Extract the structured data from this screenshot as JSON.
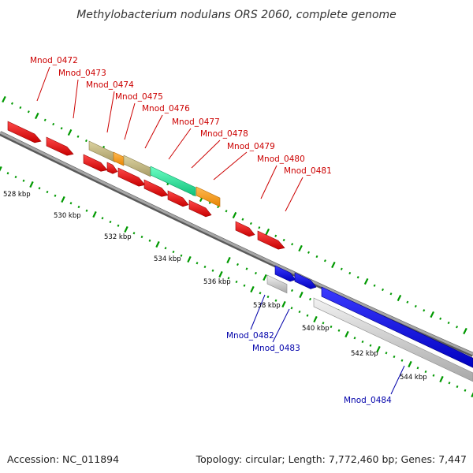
{
  "title": "Methylobacterium nodulans ORS 2060, complete genome",
  "accession": "Accession: NC_011894",
  "topology": "Topology: circular; Length: 7,772,460 bp; Genes: 7,447",
  "colors": {
    "red": "#ee0000",
    "blue": "#0000ee",
    "tan": "#c8bd86",
    "orange": "#ff9f1a",
    "teal": "#1fe39a",
    "grey": "#cfcfcf",
    "strand": "#8a8a8a",
    "tick": "#009900",
    "label_red": "#cc0000",
    "label_blue": "#0000aa"
  },
  "ticks": [
    {
      "kbp": 528,
      "label": "528 kbp"
    },
    {
      "kbp": 530,
      "label": "530 kbp"
    },
    {
      "kbp": 532,
      "label": "532 kbp"
    },
    {
      "kbp": 534,
      "label": "534 kbp"
    },
    {
      "kbp": 536,
      "label": "536 kbp"
    },
    {
      "kbp": 538,
      "label": "538 kbp"
    },
    {
      "kbp": 540,
      "label": "540 kbp"
    },
    {
      "kbp": 542,
      "label": "542 kbp"
    },
    {
      "kbp": 544,
      "label": "544 kbp"
    }
  ],
  "gene_labels": [
    {
      "text": "Mnod_0472",
      "strand": "forward"
    },
    {
      "text": "Mnod_0473",
      "strand": "forward"
    },
    {
      "text": "Mnod_0474",
      "strand": "forward"
    },
    {
      "text": "Mnod_0475",
      "strand": "forward"
    },
    {
      "text": "Mnod_0476",
      "strand": "forward"
    },
    {
      "text": "Mnod_0477",
      "strand": "forward"
    },
    {
      "text": "Mnod_0478",
      "strand": "forward"
    },
    {
      "text": "Mnod_0479",
      "strand": "forward"
    },
    {
      "text": "Mnod_0480",
      "strand": "forward"
    },
    {
      "text": "Mnod_0481",
      "strand": "forward"
    },
    {
      "text": "Mnod_0482",
      "strand": "reverse"
    },
    {
      "text": "Mnod_0483",
      "strand": "reverse"
    },
    {
      "text": "Mnod_0484",
      "strand": "reverse"
    }
  ]
}
